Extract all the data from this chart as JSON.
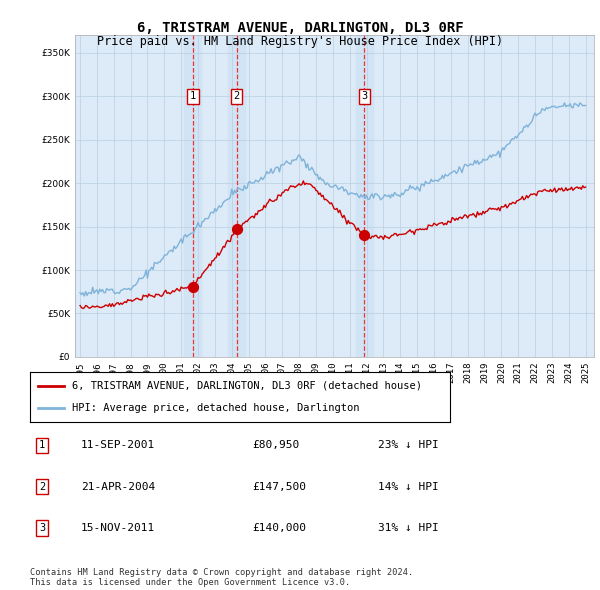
{
  "title1": "6, TRISTRAM AVENUE, DARLINGTON, DL3 0RF",
  "title2": "Price paid vs. HM Land Registry's House Price Index (HPI)",
  "legend_label_red": "6, TRISTRAM AVENUE, DARLINGTON, DL3 0RF (detached house)",
  "legend_label_blue": "HPI: Average price, detached house, Darlington",
  "footer": "Contains HM Land Registry data © Crown copyright and database right 2024.\nThis data is licensed under the Open Government Licence v3.0.",
  "sales": [
    {
      "num": 1,
      "date": "11-SEP-2001",
      "price": 80950,
      "pct": "23%",
      "dir": "↓"
    },
    {
      "num": 2,
      "date": "21-APR-2004",
      "price": 147500,
      "pct": "14%",
      "dir": "↓"
    },
    {
      "num": 3,
      "date": "15-NOV-2011",
      "price": 140000,
      "pct": "31%",
      "dir": "↓"
    }
  ],
  "sale_years": [
    2001.69,
    2004.3,
    2011.87
  ],
  "sale_prices": [
    80950,
    147500,
    140000
  ],
  "ylim": [
    0,
    370000
  ],
  "yticks": [
    0,
    50000,
    100000,
    150000,
    200000,
    250000,
    300000,
    350000
  ],
  "red_color": "#cc0000",
  "blue_color": "#7fb3d9",
  "vline_color": "#ee3333",
  "highlight_color": "#d0e4f5"
}
